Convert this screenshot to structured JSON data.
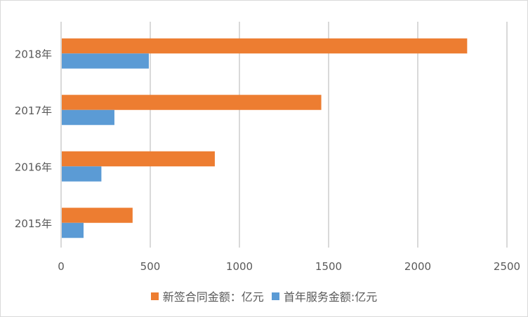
{
  "chart_data": {
    "type": "bar",
    "orientation": "horizontal",
    "title": "",
    "xlabel": "",
    "ylabel": "",
    "categories": [
      "2018年",
      "2017年",
      "2016年",
      "2015年"
    ],
    "series": [
      {
        "name": "新签合同金额：亿元",
        "color": "#ED7D31",
        "values": [
          2277,
          1459,
          862,
          401
        ]
      },
      {
        "name": "首年服务金额:亿元",
        "color": "#5B9BD5",
        "values": [
          492,
          299,
          226,
          126
        ]
      }
    ],
    "xlim": [
      0,
      2500
    ],
    "xticks": [
      "0",
      "500",
      "1000",
      "1500",
      "2000",
      "2500"
    ],
    "grid": true,
    "gridColor": "#d9d9d9",
    "legend": "bottom"
  }
}
